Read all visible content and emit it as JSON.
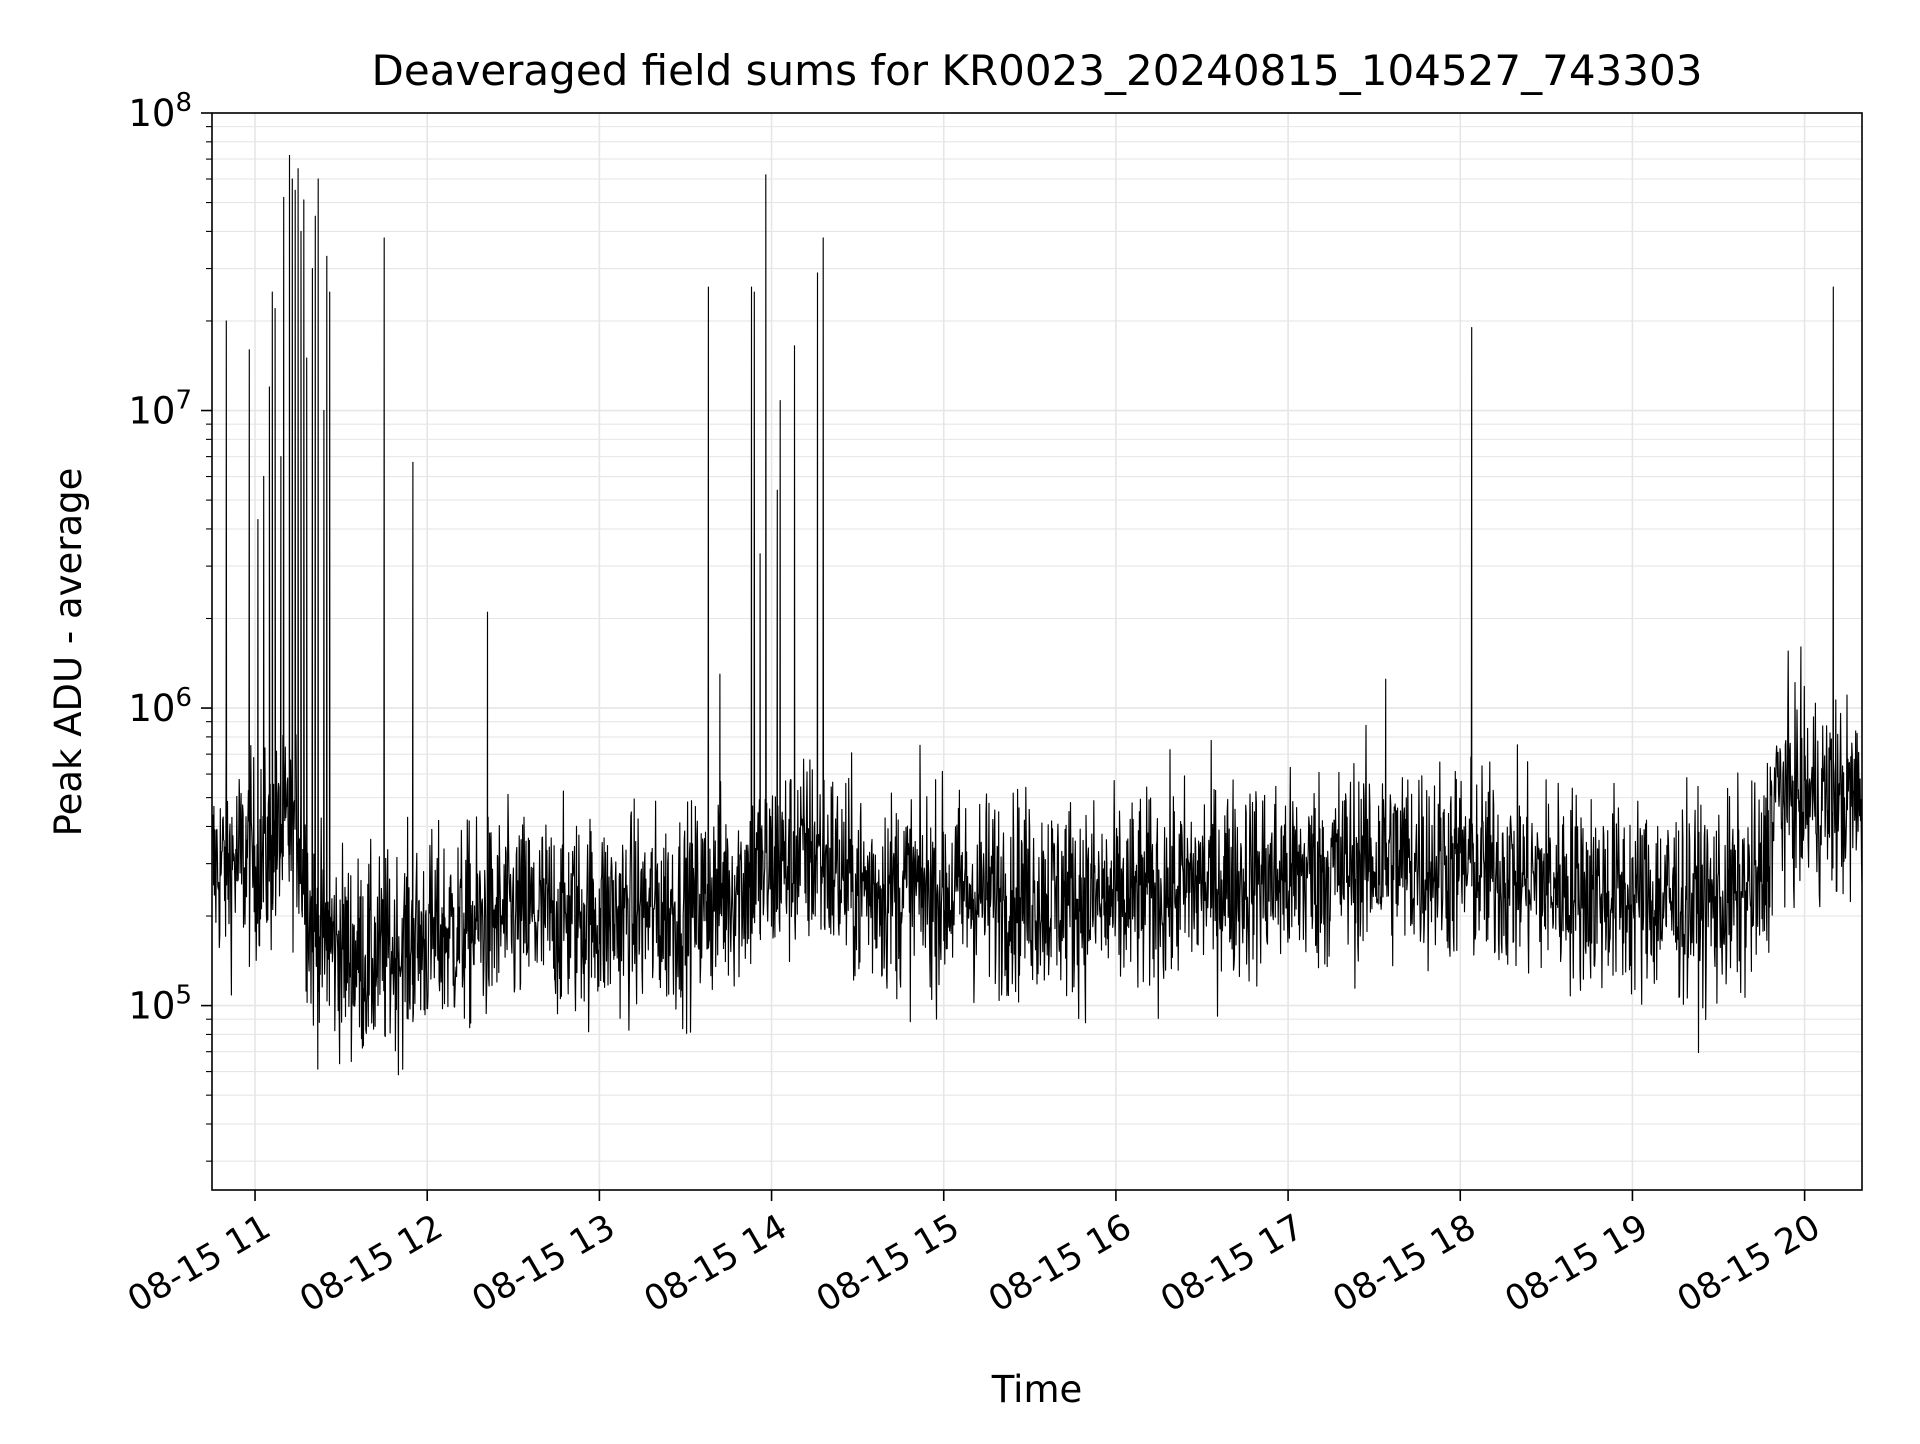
{
  "chart_data": {
    "type": "line",
    "title": "Deaveraged field sums for KR0023_20240815_104527_743303",
    "xlabel": "Time",
    "ylabel": "Peak ADU - average",
    "y_scale": "log",
    "ylim": [
      24000,
      100000000
    ],
    "xlim": [
      "2024-08-15 10:45",
      "2024-08-15 20:20"
    ],
    "x_ticks": [
      "08-15 11",
      "08-15 12",
      "08-15 13",
      "08-15 14",
      "08-15 15",
      "08-15 16",
      "08-15 17",
      "08-15 18",
      "08-15 19",
      "08-15 20"
    ],
    "y_ticks": [
      {
        "base": "10",
        "exp": "5"
      },
      {
        "base": "10",
        "exp": "6"
      },
      {
        "base": "10",
        "exp": "7"
      },
      {
        "base": "10",
        "exp": "8"
      }
    ],
    "grid": true,
    "line_color": "#000000",
    "grid_color": "#e6e6e6",
    "series": [
      {
        "baseline": [
          [
            "2024-08-15 10:45",
            290000
          ],
          [
            "2024-08-15 11:05",
            320000
          ],
          [
            "2024-08-15 11:15",
            420000
          ],
          [
            "2024-08-15 11:20",
            170000
          ],
          [
            "2024-08-15 11:40",
            140000
          ],
          [
            "2024-08-15 12:00",
            170000
          ],
          [
            "2024-08-15 12:30",
            200000
          ],
          [
            "2024-08-15 13:00",
            200000
          ],
          [
            "2024-08-15 13:30",
            210000
          ],
          [
            "2024-08-15 13:50",
            260000
          ],
          [
            "2024-08-15 14:15",
            330000
          ],
          [
            "2024-08-15 14:30",
            250000
          ],
          [
            "2024-08-15 15:00",
            240000
          ],
          [
            "2024-08-15 15:30",
            240000
          ],
          [
            "2024-08-15 16:00",
            220000
          ],
          [
            "2024-08-15 16:30",
            260000
          ],
          [
            "2024-08-15 17:00",
            270000
          ],
          [
            "2024-08-15 17:30",
            310000
          ],
          [
            "2024-08-15 18:00",
            300000
          ],
          [
            "2024-08-15 18:30",
            260000
          ],
          [
            "2024-08-15 19:00",
            230000
          ],
          [
            "2024-08-15 19:30",
            220000
          ],
          [
            "2024-08-15 19:45",
            250000
          ],
          [
            "2024-08-15 19:50",
            520000
          ],
          [
            "2024-08-15 20:20",
            480000
          ]
        ],
        "spikes": [
          [
            "2024-08-15 10:50",
            20000000
          ],
          [
            "2024-08-15 10:58",
            16000000
          ],
          [
            "2024-08-15 11:01",
            4300000
          ],
          [
            "2024-08-15 11:03",
            6000000
          ],
          [
            "2024-08-15 11:05",
            12000000
          ],
          [
            "2024-08-15 11:06",
            25000000
          ],
          [
            "2024-08-15 11:07",
            22000000
          ],
          [
            "2024-08-15 11:09",
            7000000
          ],
          [
            "2024-08-15 11:10",
            52000000
          ],
          [
            "2024-08-15 11:12",
            72000000
          ],
          [
            "2024-08-15 11:13",
            60000000
          ],
          [
            "2024-08-15 11:14",
            55000000
          ],
          [
            "2024-08-15 11:15",
            65000000
          ],
          [
            "2024-08-15 11:16",
            40000000
          ],
          [
            "2024-08-15 11:17",
            51000000
          ],
          [
            "2024-08-15 11:18",
            15000000
          ],
          [
            "2024-08-15 11:20",
            30000000
          ],
          [
            "2024-08-15 11:21",
            45000000
          ],
          [
            "2024-08-15 11:22",
            60000000
          ],
          [
            "2024-08-15 11:24",
            10000000
          ],
          [
            "2024-08-15 11:25",
            33000000
          ],
          [
            "2024-08-15 11:26",
            25000000
          ],
          [
            "2024-08-15 11:45",
            38000000
          ],
          [
            "2024-08-15 11:55",
            6700000
          ],
          [
            "2024-08-15 12:21",
            2100000
          ],
          [
            "2024-08-15 13:38",
            26000000
          ],
          [
            "2024-08-15 13:42",
            1300000
          ],
          [
            "2024-08-15 13:53",
            26000000
          ],
          [
            "2024-08-15 13:54",
            25000000
          ],
          [
            "2024-08-15 13:56",
            3300000
          ],
          [
            "2024-08-15 13:58",
            62000000
          ],
          [
            "2024-08-15 14:02",
            5400000
          ],
          [
            "2024-08-15 14:03",
            10800000
          ],
          [
            "2024-08-15 14:08",
            16500000
          ],
          [
            "2024-08-15 14:16",
            29000000
          ],
          [
            "2024-08-15 14:18",
            38000000
          ],
          [
            "2024-08-15 17:34",
            1250000
          ],
          [
            "2024-08-15 18:04",
            19000000
          ],
          [
            "2024-08-15 20:10",
            26000000
          ]
        ]
      }
    ]
  }
}
